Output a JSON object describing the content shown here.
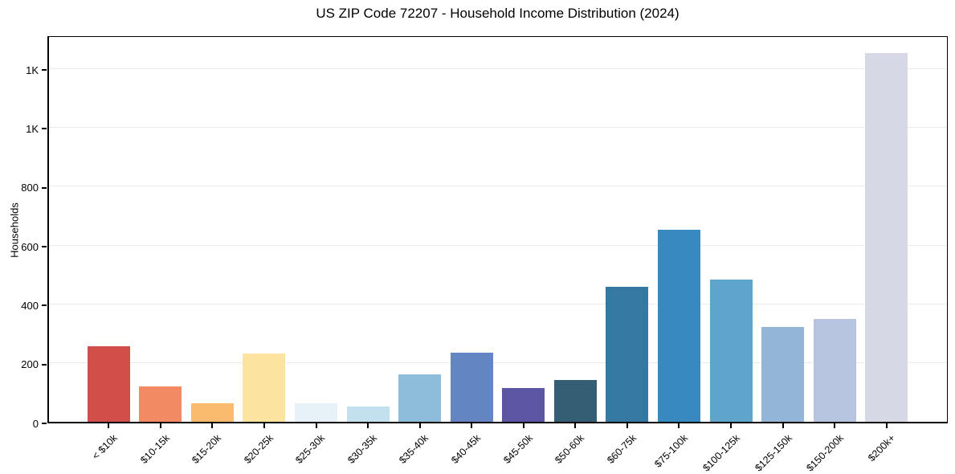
{
  "figure": {
    "background": "#ffffff"
  },
  "chart_data": {
    "type": "bar",
    "title": "US ZIP Code 72207 - Household Income Distribution (2024)",
    "xlabel": "",
    "ylabel": "Households",
    "categories": [
      "< $10k",
      "$10-15k",
      "$15-20k",
      "$20-25k",
      "$25-30k",
      "$30-35k",
      "$35-40k",
      "$40-45k",
      "$45-50k",
      "$50-60k",
      "$60-75k",
      "$75-100k",
      "$100-125k",
      "$125-150k",
      "$150-200k",
      "$200k+"
    ],
    "values": [
      257,
      121,
      62,
      233,
      62,
      51,
      161,
      235,
      114,
      143,
      459,
      651,
      484,
      322,
      350,
      1253
    ],
    "bar_colors": [
      "#d14f48",
      "#f28a64",
      "#fabb6e",
      "#fce3a0",
      "#e6f2f7",
      "#c2e0ee",
      "#8ebddc",
      "#6386c2",
      "#5b55a4",
      "#345e74",
      "#3578a2",
      "#3789c0",
      "#5fa5cb",
      "#92b5d8",
      "#b7c4df",
      "#d7d8e6"
    ],
    "y_ticks": {
      "values": [
        0,
        200,
        400,
        600,
        800,
        1000,
        1200
      ],
      "labels": [
        "0",
        "200",
        "400",
        "600",
        "800",
        "1K",
        "1K"
      ]
    },
    "ylim": [
      0,
      1315
    ],
    "grid": "horizontal",
    "gridline_color": "#ebebeb",
    "axis_color": "#000000",
    "legend": "none"
  }
}
